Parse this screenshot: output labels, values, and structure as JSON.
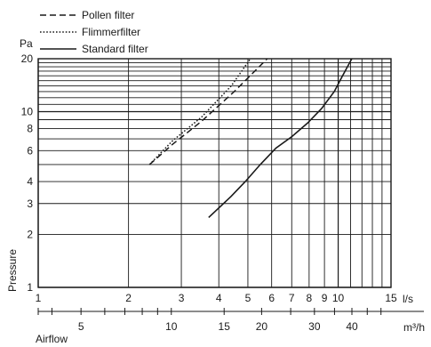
{
  "chart_data": {
    "type": "line",
    "title": "",
    "xlabel": "Airflow",
    "ylabel": "Pressure",
    "y_unit": "Pa",
    "x_unit_primary": "l/s",
    "x_unit_secondary": "m³/h",
    "x_scale": "log",
    "y_scale": "log",
    "xlim": [
      1,
      15
    ],
    "ylim": [
      1,
      20
    ],
    "x_ticks": [
      "1",
      "2",
      "3",
      "4",
      "5",
      "6",
      "7",
      "8",
      "9",
      "10",
      "15"
    ],
    "y_ticks": [
      "1",
      "2",
      "3",
      "4",
      "6",
      "8",
      "10",
      "20"
    ],
    "secondary_x_ticks": [
      "5",
      "10",
      "15",
      "20",
      "30",
      "40"
    ],
    "secondary_x_per_primary": 3.6,
    "grid": true,
    "legend_position": "top-left",
    "series": [
      {
        "name": "Pollen filter",
        "style": "dashed",
        "x": [
          2.35,
          2.8,
          3.5,
          4.5,
          5.8
        ],
        "y": [
          5.0,
          6.5,
          8.8,
          13.0,
          20.0
        ]
      },
      {
        "name": "Flimmerfilter",
        "style": "dotted",
        "x": [
          2.35,
          2.8,
          3.5,
          4.4,
          5.1
        ],
        "y": [
          5.0,
          6.8,
          9.3,
          14.0,
          20.0
        ]
      },
      {
        "name": "Standard filter",
        "style": "solid",
        "x": [
          3.7,
          4.4,
          4.9,
          5.5,
          6.2,
          7.0,
          7.9,
          8.8,
          9.7,
          10.3,
          11.1
        ],
        "y": [
          2.5,
          3.3,
          4.0,
          5.0,
          6.2,
          7.2,
          8.6,
          10.4,
          13.0,
          15.8,
          20.0
        ]
      }
    ]
  }
}
